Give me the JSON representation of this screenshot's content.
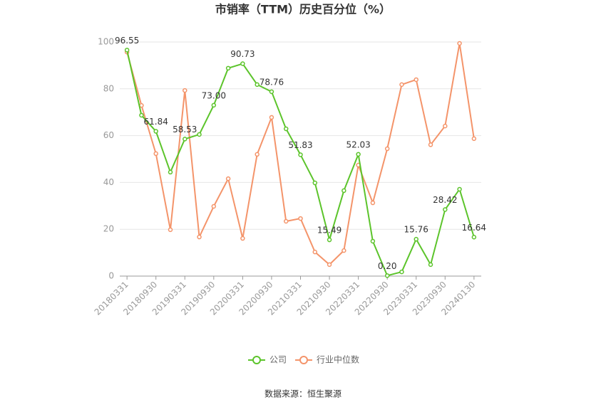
{
  "chart_data": {
    "type": "line",
    "title": "市销率（TTM）历史百分位（%）",
    "source": "数据来源：恒生聚源",
    "categories": [
      "20180331",
      null,
      "20180930",
      null,
      "20190331",
      null,
      "20190930",
      null,
      "20200331",
      null,
      "20200930",
      null,
      "20210331",
      null,
      "20210930",
      null,
      "20220331",
      null,
      "20220930",
      null,
      "20230331",
      null,
      "20230930",
      null,
      "20240130"
    ],
    "series": [
      {
        "name": "公司",
        "color": "#5cc42b",
        "values": [
          96.55,
          68.7,
          61.84,
          44.4,
          58.53,
          60.5,
          73.0,
          88.8,
          90.73,
          81.8,
          78.76,
          62.9,
          51.83,
          39.8,
          15.49,
          36.5,
          52.03,
          14.9,
          0.2,
          1.8,
          15.76,
          4.9,
          28.42,
          37.1,
          16.64
        ],
        "value_labels": [
          "96.55",
          null,
          "61.84",
          null,
          "58.53",
          null,
          "73.00",
          null,
          "90.73",
          null,
          "78.76",
          null,
          "51.83",
          null,
          "15.49",
          null,
          "52.03",
          null,
          "0.20",
          null,
          "15.76",
          null,
          "28.42",
          null,
          "16.64"
        ]
      },
      {
        "name": "行业中位数",
        "color": "#f4946a",
        "values": [
          95.7,
          72.9,
          52.3,
          19.8,
          79.3,
          16.7,
          29.8,
          41.6,
          16.1,
          52.0,
          67.8,
          23.4,
          24.6,
          10.3,
          4.9,
          10.9,
          47.4,
          31.3,
          54.4,
          81.8,
          83.9,
          56.1,
          64.1,
          99.4,
          58.7
        ]
      }
    ],
    "ylim": [
      0,
      100
    ],
    "yticks": [
      0,
      20,
      40,
      60,
      80,
      100
    ],
    "grid": true
  }
}
